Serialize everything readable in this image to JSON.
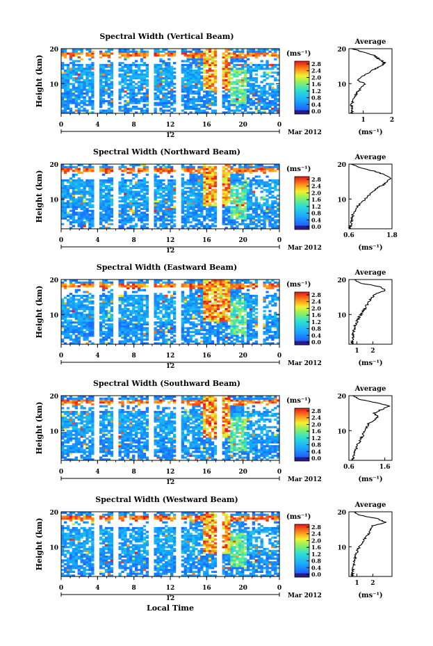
{
  "figure": {
    "xlabel": "Local Time",
    "date_label": "Mar 2012",
    "colorbar_unit": "(ms⁻¹)",
    "colorbar_ticks": [
      "0.0",
      "0.4",
      "0.8",
      "1.2",
      "1.6",
      "2.0",
      "2.4",
      "2.8"
    ],
    "avg_title": "Average",
    "avg_unit": "(ms⁻¹)",
    "ylabel": "Height (km)",
    "time_ticks": [
      "0",
      "4",
      "8",
      "12",
      "16",
      "20",
      "0"
    ],
    "day_marker": "12"
  },
  "chart_data": [
    {
      "type": "heatmap",
      "title": "Spectral Width (Vertical Beam)",
      "ylabel": "Height (km)",
      "x_range_hours": [
        0,
        24
      ],
      "ylim": [
        1.5,
        20
      ],
      "y_ticks": [
        10,
        20
      ],
      "colorbar_range": [
        0.0,
        2.8
      ],
      "gaps_hours": [
        3.9,
        5.9,
        9.9,
        12.8,
        17.3
      ],
      "average_profile": {
        "xlabel": "(ms⁻¹)",
        "xlim": [
          0.5,
          2.0
        ],
        "x_ticks": [
          "1",
          "2"
        ],
        "y_ticks": [
          10,
          20
        ],
        "height_km": [
          1.5,
          2,
          3,
          4,
          5,
          6,
          7,
          8,
          9,
          10,
          11,
          12,
          13,
          14,
          15,
          16,
          17,
          18,
          19,
          20
        ],
        "value": [
          0.6,
          0.62,
          0.6,
          0.58,
          0.65,
          0.7,
          0.75,
          0.85,
          0.95,
          1.05,
          0.8,
          0.95,
          1.15,
          1.35,
          1.6,
          1.75,
          1.55,
          1.4,
          1.0,
          0.6
        ]
      }
    },
    {
      "type": "heatmap",
      "title": "Spectral Width (Northward Beam)",
      "ylabel": "Height (km)",
      "x_range_hours": [
        0,
        24
      ],
      "ylim": [
        1.5,
        20
      ],
      "y_ticks": [
        10,
        20
      ],
      "colorbar_range": [
        0.0,
        2.8
      ],
      "gaps_hours": [
        3.9,
        5.9,
        9.9,
        12.8,
        17.3
      ],
      "average_profile": {
        "xlabel": "(ms⁻¹)",
        "xlim": [
          0.6,
          1.8
        ],
        "x_ticks": [
          "0.6",
          "1.8"
        ],
        "y_ticks": [
          10,
          20
        ],
        "height_km": [
          1.5,
          2,
          3,
          4,
          5,
          6,
          7,
          8,
          9,
          10,
          11,
          12,
          13,
          14,
          15,
          16,
          17,
          18,
          19,
          20
        ],
        "value": [
          0.62,
          0.64,
          0.66,
          0.68,
          0.7,
          0.72,
          0.78,
          0.85,
          0.95,
          1.05,
          1.15,
          1.25,
          1.35,
          1.55,
          1.65,
          1.75,
          1.6,
          1.3,
          0.9,
          0.65
        ]
      }
    },
    {
      "type": "heatmap",
      "title": "Spectral Width (Eastward Beam)",
      "ylabel": "Height (km)",
      "x_range_hours": [
        0,
        24
      ],
      "ylim": [
        1.5,
        20
      ],
      "y_ticks": [
        10,
        20
      ],
      "colorbar_range": [
        0.0,
        2.8
      ],
      "gaps_hours": [
        3.9,
        5.9,
        9.9,
        12.8,
        21.8
      ],
      "average_profile": {
        "xlabel": "(ms⁻¹)",
        "xlim": [
          0.5,
          3.2
        ],
        "x_ticks": [
          "1",
          "2"
        ],
        "y_ticks": [
          10,
          20
        ],
        "height_km": [
          1.5,
          2,
          3,
          4,
          5,
          6,
          7,
          8,
          9,
          10,
          11,
          12,
          13,
          14,
          15,
          16,
          17,
          18,
          19,
          20
        ],
        "value": [
          0.7,
          0.72,
          0.74,
          0.76,
          0.8,
          0.85,
          0.9,
          1.0,
          1.1,
          1.25,
          1.4,
          1.55,
          1.65,
          1.8,
          2.0,
          2.2,
          2.8,
          2.4,
          1.2,
          0.8
        ]
      }
    },
    {
      "type": "heatmap",
      "title": "Spectral Width (Southward Beam)",
      "ylabel": "Height (km)",
      "x_range_hours": [
        0,
        24
      ],
      "ylim": [
        1.5,
        20
      ],
      "y_ticks": [
        10,
        20
      ],
      "colorbar_range": [
        0.0,
        2.8
      ],
      "gaps_hours": [
        3.9,
        5.9,
        9.9,
        12.8,
        17.3
      ],
      "average_profile": {
        "xlabel": "(ms⁻¹)",
        "xlim": [
          0.6,
          1.8
        ],
        "x_ticks": [
          "0.6",
          "1.6"
        ],
        "y_ticks": [
          10,
          20
        ],
        "height_km": [
          1.5,
          2,
          3,
          4,
          5,
          6,
          7,
          8,
          9,
          10,
          11,
          12,
          13,
          14,
          15,
          16,
          17,
          18,
          19,
          20
        ],
        "value": [
          0.7,
          0.72,
          0.74,
          0.76,
          0.8,
          0.85,
          0.9,
          0.95,
          1.0,
          1.05,
          1.1,
          1.15,
          1.3,
          1.4,
          1.3,
          1.5,
          1.75,
          1.35,
          0.9,
          0.7
        ]
      }
    },
    {
      "type": "heatmap",
      "title": "Spectral Width (Westward Beam)",
      "ylabel": "Height (km)",
      "x_range_hours": [
        0,
        24
      ],
      "ylim": [
        1.5,
        20
      ],
      "y_ticks": [
        10,
        20
      ],
      "colorbar_range": [
        0.0,
        2.8
      ],
      "gaps_hours": [
        3.9,
        5.9,
        9.9,
        12.8,
        17.3
      ],
      "average_profile": {
        "xlabel": "(ms⁻¹)",
        "xlim": [
          0.5,
          3.2
        ],
        "x_ticks": [
          "1",
          "2"
        ],
        "y_ticks": [
          10,
          20
        ],
        "height_km": [
          1.5,
          2,
          3,
          4,
          5,
          6,
          7,
          8,
          9,
          10,
          11,
          12,
          13,
          14,
          15,
          16,
          17,
          18,
          19,
          20
        ],
        "value": [
          0.7,
          0.72,
          0.74,
          0.76,
          0.8,
          0.85,
          0.9,
          0.95,
          1.05,
          1.15,
          1.3,
          1.45,
          1.6,
          1.8,
          1.9,
          2.0,
          2.8,
          2.3,
          1.2,
          0.8
        ]
      }
    }
  ]
}
